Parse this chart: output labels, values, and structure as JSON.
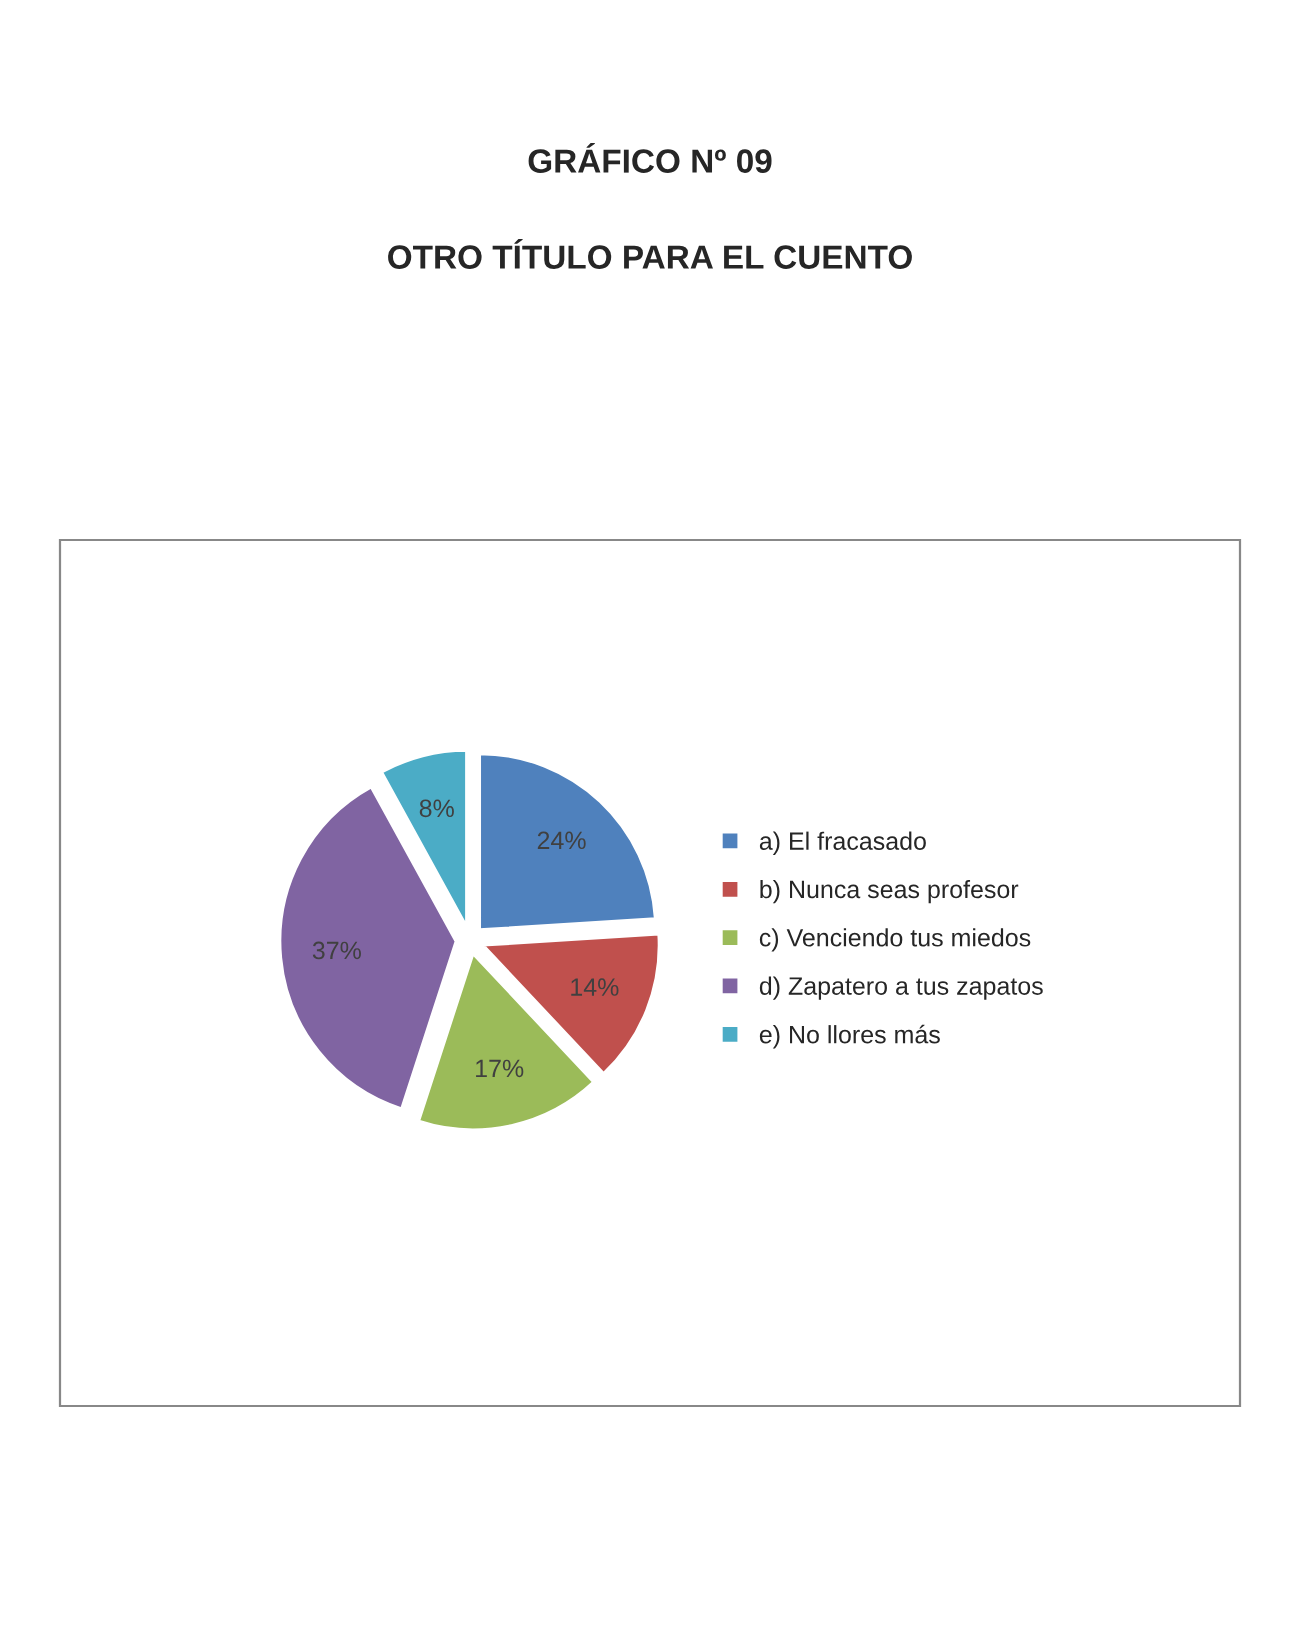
{
  "chart_data": {
    "type": "pie",
    "title": "GRÁFICO Nº 09",
    "subtitle": "OTRO TÍTULO PARA EL CUENTO",
    "categories": [
      "a) El fracasado",
      "b) Nunca seas profesor",
      "c) Venciendo tus miedos",
      "d) Zapatero a tus zapatos",
      "e) No llores más"
    ],
    "values": [
      24,
      14,
      17,
      37,
      8
    ],
    "value_labels": [
      "24%",
      "14%",
      "17%",
      "37%",
      "8%"
    ],
    "colors": [
      "#4f81bd",
      "#c0504d",
      "#9bbb59",
      "#8064a2",
      "#4bacc6"
    ],
    "legend": "right"
  }
}
